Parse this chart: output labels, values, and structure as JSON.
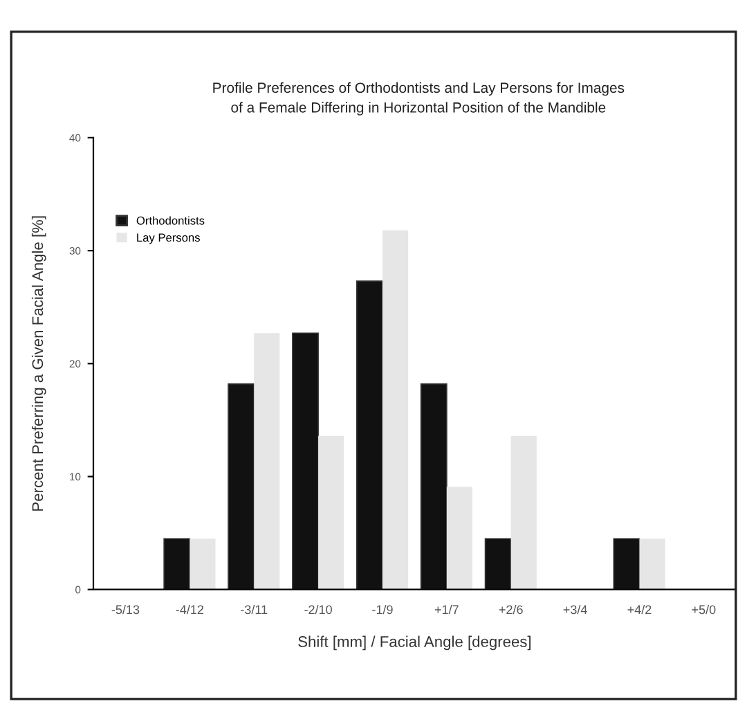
{
  "chart_data": {
    "type": "bar",
    "title": "Profile Preferences of Orthodontists and Lay Persons for Images\nof a Female Differing in Horizontal Position of the Mandible",
    "xlabel": "Shift [mm] / Facial Angle [degrees]",
    "ylabel": "Percent Preferring a Given Facial Angle [%]",
    "categories": [
      "-5/13",
      "-4/12",
      "-3/11",
      "-2/10",
      "-1/9",
      "+1/7",
      "+2/6",
      "+3/4",
      "+4/2",
      "+5/0"
    ],
    "series": [
      {
        "name": "Orthodontists",
        "color": "#111111",
        "values": [
          0,
          4.5,
          18.2,
          22.7,
          27.3,
          18.2,
          4.5,
          0,
          4.5,
          0
        ]
      },
      {
        "name": "Lay Persons",
        "color": "#e6e6e6",
        "values": [
          0,
          4.5,
          22.7,
          13.6,
          31.8,
          9.1,
          13.6,
          0,
          4.5,
          0
        ]
      }
    ],
    "ylim": [
      0,
      40
    ],
    "yticks": [
      0,
      10,
      20,
      30,
      40
    ],
    "grid": false,
    "legend": "top left"
  }
}
